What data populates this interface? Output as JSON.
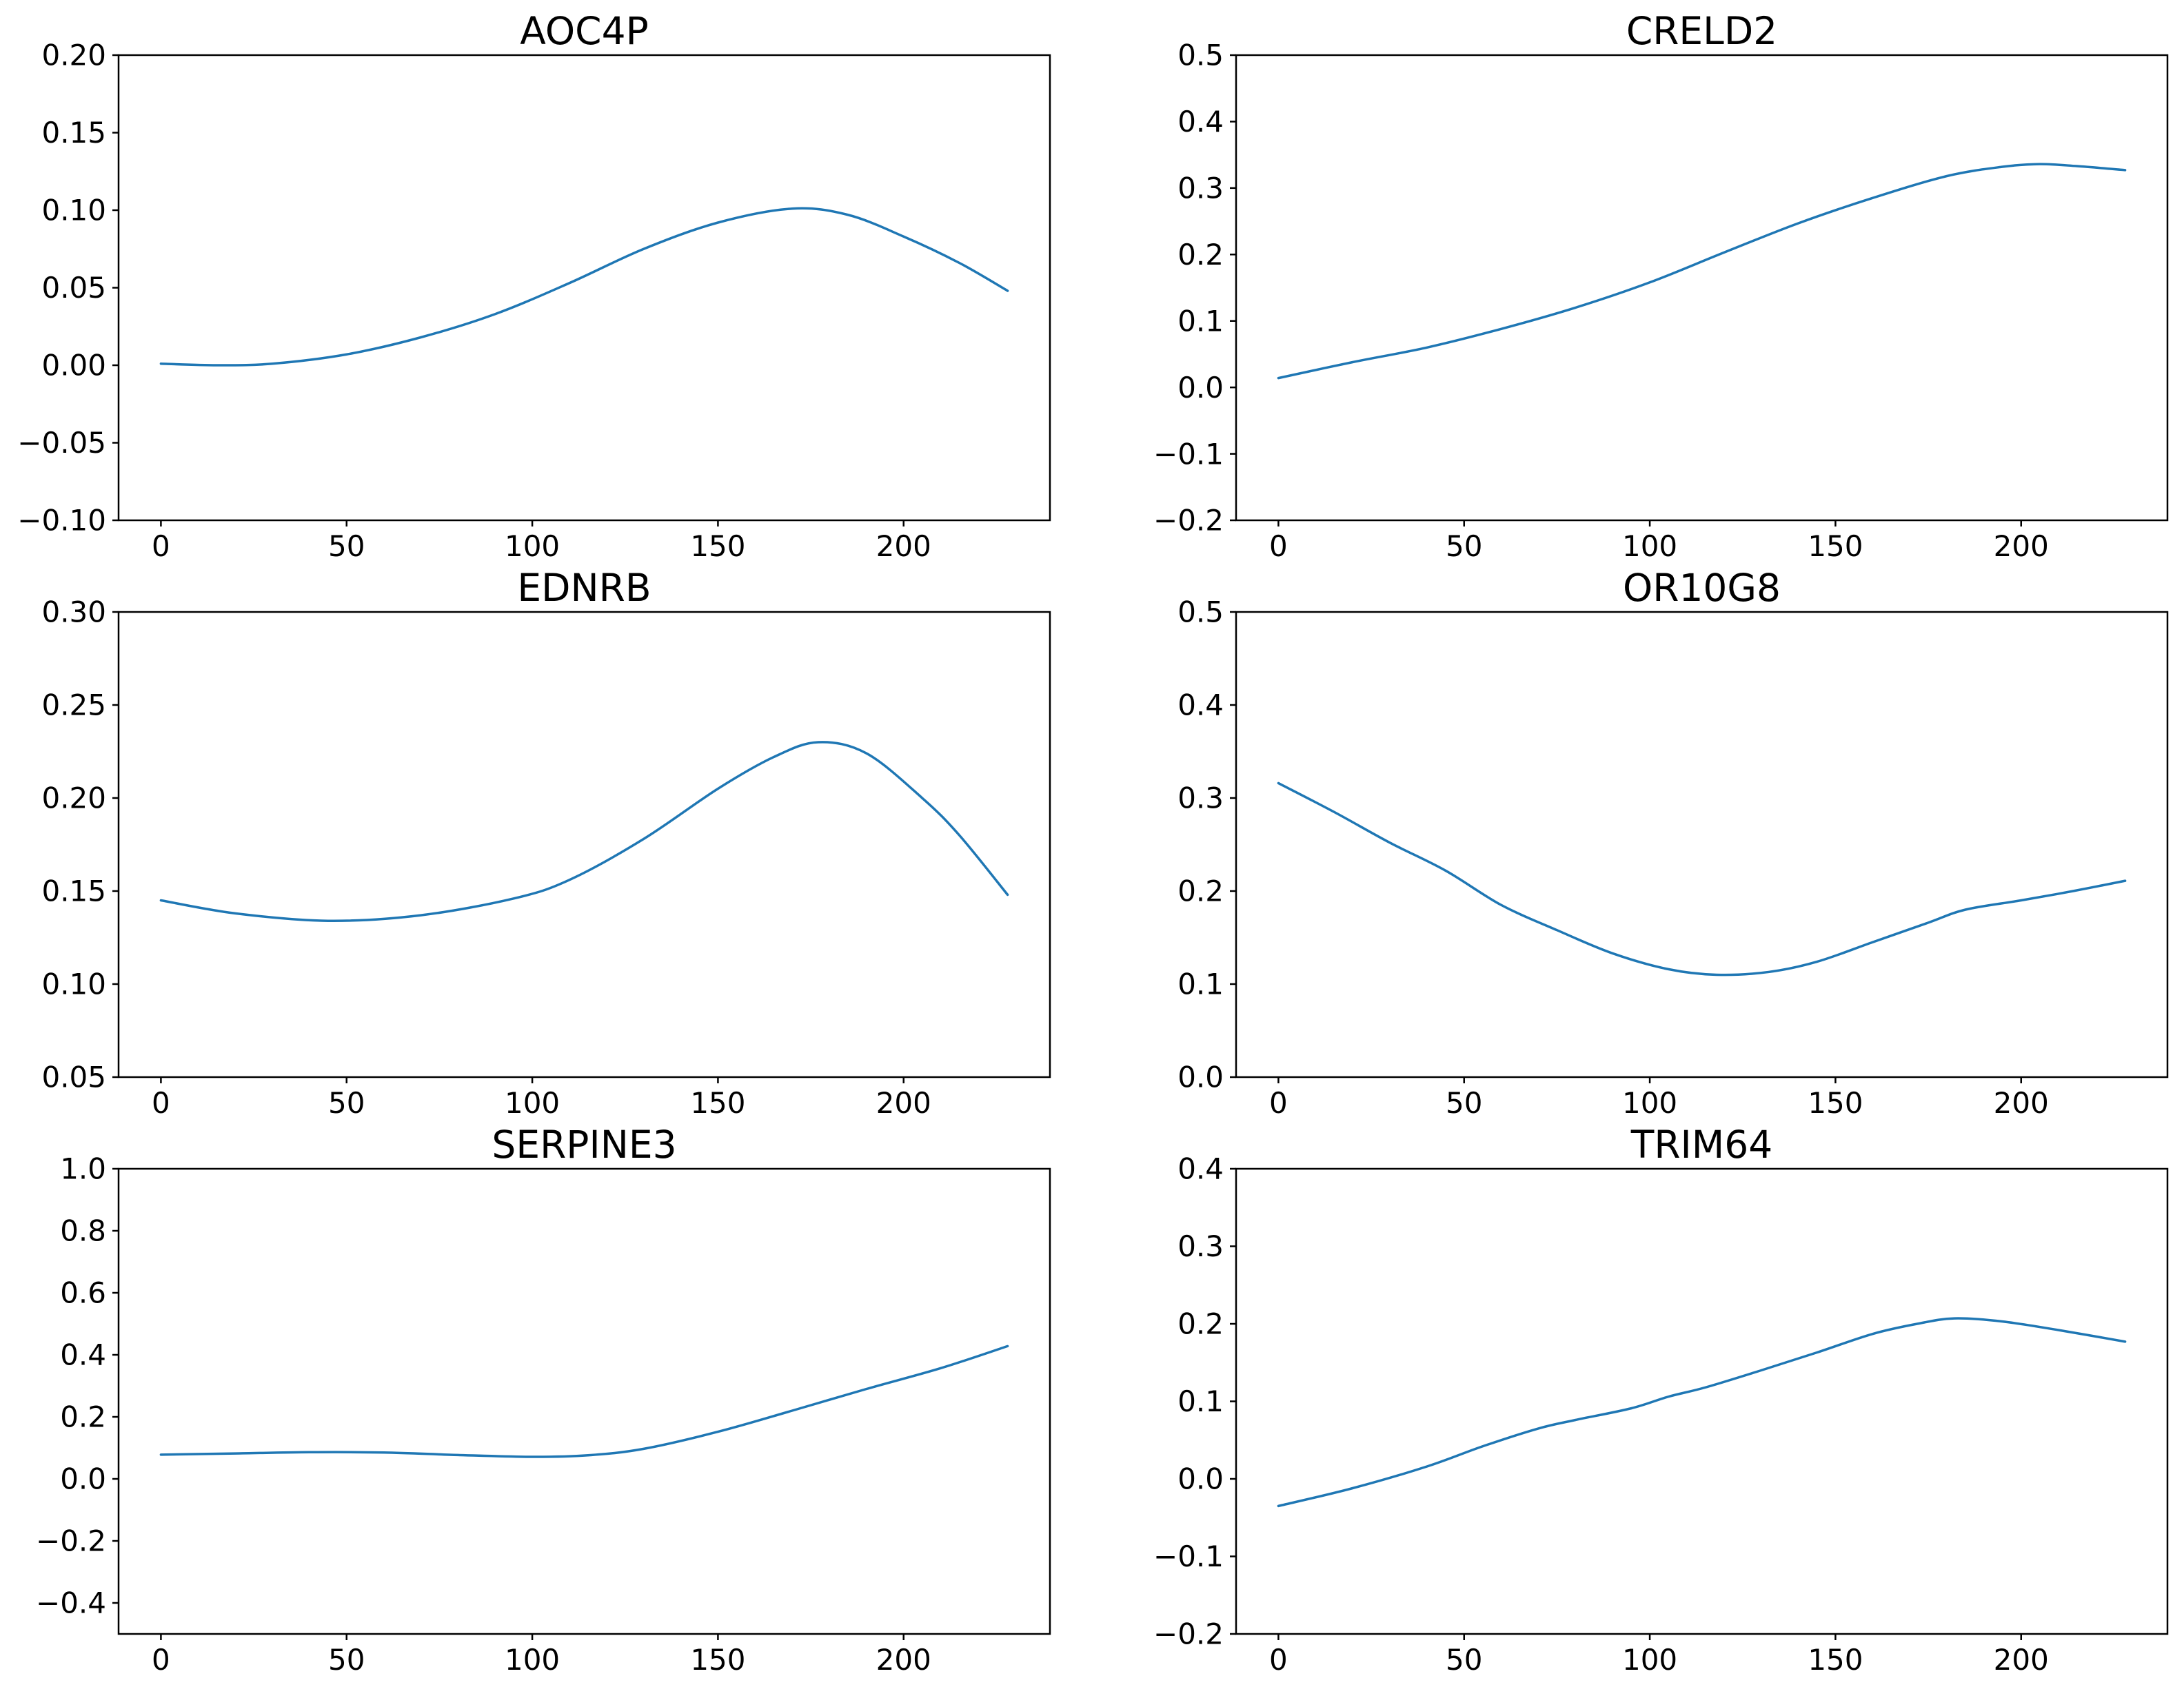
{
  "figure": {
    "background_color": "#ffffff",
    "line_color": "#1f77b4",
    "axis_color": "#000000",
    "rows": 3,
    "cols": 2
  },
  "chart_data": [
    {
      "type": "line",
      "title": "AOC4P",
      "xlim": [
        -11.4,
        239.4
      ],
      "ylim": [
        -0.1,
        0.2
      ],
      "grid": false,
      "legend": null,
      "x_ticks": {
        "values": [
          0,
          50,
          100,
          150,
          200
        ],
        "labels": [
          "0",
          "50",
          "100",
          "150",
          "200"
        ]
      },
      "y_ticks": {
        "values": [
          -0.1,
          -0.05,
          0.0,
          0.05,
          0.1,
          0.15,
          0.2
        ],
        "labels": [
          "−0.10",
          "−0.05",
          "0.00",
          "0.05",
          "0.10",
          "0.15",
          "0.20"
        ]
      },
      "series": [
        {
          "x": [
            0,
            15,
            30,
            50,
            70,
            90,
            110,
            130,
            150,
            170,
            185,
            200,
            215,
            228
          ],
          "y": [
            0.001,
            0.0,
            0.001,
            0.007,
            0.018,
            0.033,
            0.053,
            0.075,
            0.092,
            0.101,
            0.097,
            0.083,
            0.066,
            0.048
          ]
        }
      ]
    },
    {
      "type": "line",
      "title": "CRELD2",
      "xlim": [
        -11.4,
        239.4
      ],
      "ylim": [
        -0.2,
        0.5
      ],
      "grid": false,
      "legend": null,
      "x_ticks": {
        "values": [
          0,
          50,
          100,
          150,
          200
        ],
        "labels": [
          "0",
          "50",
          "100",
          "150",
          "200"
        ]
      },
      "y_ticks": {
        "values": [
          -0.2,
          -0.1,
          0.0,
          0.1,
          0.2,
          0.3,
          0.4,
          0.5
        ],
        "labels": [
          "−0.2",
          "−0.1",
          "0.0",
          "0.1",
          "0.2",
          "0.3",
          "0.4",
          "0.5"
        ]
      },
      "series": [
        {
          "x": [
            0,
            20,
            40,
            60,
            80,
            100,
            120,
            140,
            160,
            180,
            195,
            205,
            215,
            228
          ],
          "y": [
            0.014,
            0.038,
            0.06,
            0.088,
            0.12,
            0.158,
            0.203,
            0.247,
            0.285,
            0.318,
            0.332,
            0.336,
            0.333,
            0.327
          ]
        }
      ]
    },
    {
      "type": "line",
      "title": "EDNRB",
      "xlim": [
        -11.4,
        239.4
      ],
      "ylim": [
        0.05,
        0.3
      ],
      "grid": false,
      "legend": null,
      "x_ticks": {
        "values": [
          0,
          50,
          100,
          150,
          200
        ],
        "labels": [
          "0",
          "50",
          "100",
          "150",
          "200"
        ]
      },
      "y_ticks": {
        "values": [
          0.05,
          0.1,
          0.15,
          0.2,
          0.25,
          0.3
        ],
        "labels": [
          "0.05",
          "0.10",
          "0.15",
          "0.20",
          "0.25",
          "0.30"
        ]
      },
      "series": [
        {
          "x": [
            0,
            20,
            45,
            70,
            95,
            110,
            130,
            150,
            165,
            177,
            190,
            205,
            215,
            228
          ],
          "y": [
            0.145,
            0.138,
            0.134,
            0.137,
            0.146,
            0.156,
            0.178,
            0.205,
            0.222,
            0.23,
            0.224,
            0.2,
            0.18,
            0.148
          ]
        }
      ]
    },
    {
      "type": "line",
      "title": "OR10G8",
      "xlim": [
        -11.4,
        239.4
      ],
      "ylim": [
        0.0,
        0.5
      ],
      "grid": false,
      "legend": null,
      "x_ticks": {
        "values": [
          0,
          50,
          100,
          150,
          200
        ],
        "labels": [
          "0",
          "50",
          "100",
          "150",
          "200"
        ]
      },
      "y_ticks": {
        "values": [
          0.0,
          0.1,
          0.2,
          0.3,
          0.4,
          0.5
        ],
        "labels": [
          "0.0",
          "0.1",
          "0.2",
          "0.3",
          "0.4",
          "0.5"
        ]
      },
      "series": [
        {
          "x": [
            0,
            15,
            30,
            45,
            60,
            75,
            90,
            105,
            118,
            132,
            145,
            160,
            175,
            185,
            200,
            214,
            228
          ],
          "y": [
            0.316,
            0.285,
            0.252,
            0.222,
            0.185,
            0.158,
            0.133,
            0.116,
            0.11,
            0.113,
            0.124,
            0.145,
            0.166,
            0.18,
            0.19,
            0.2,
            0.211
          ]
        }
      ]
    },
    {
      "type": "line",
      "title": "SERPINE3",
      "xlim": [
        -11.4,
        239.4
      ],
      "ylim": [
        -0.5,
        1.0
      ],
      "grid": false,
      "legend": null,
      "x_ticks": {
        "values": [
          0,
          50,
          100,
          150,
          200
        ],
        "labels": [
          "0",
          "50",
          "100",
          "150",
          "200"
        ]
      },
      "y_ticks": {
        "values": [
          -0.4,
          -0.2,
          0.0,
          0.2,
          0.4,
          0.6,
          0.8,
          1.0
        ],
        "labels": [
          "−0.4",
          "−0.2",
          "0.0",
          "0.2",
          "0.4",
          "0.6",
          "0.8",
          "1.0"
        ]
      },
      "series": [
        {
          "x": [
            0,
            20,
            40,
            60,
            80,
            100,
            115,
            130,
            150,
            170,
            190,
            210,
            228
          ],
          "y": [
            0.078,
            0.082,
            0.086,
            0.085,
            0.077,
            0.071,
            0.076,
            0.097,
            0.152,
            0.22,
            0.29,
            0.357,
            0.428
          ]
        }
      ]
    },
    {
      "type": "line",
      "title": "TRIM64",
      "xlim": [
        -11.4,
        239.4
      ],
      "ylim": [
        -0.2,
        0.4
      ],
      "grid": false,
      "legend": null,
      "x_ticks": {
        "values": [
          0,
          50,
          100,
          150,
          200
        ],
        "labels": [
          "0",
          "50",
          "100",
          "150",
          "200"
        ]
      },
      "y_ticks": {
        "values": [
          -0.2,
          -0.1,
          0.0,
          0.1,
          0.2,
          0.3,
          0.4
        ],
        "labels": [
          "−0.2",
          "−0.1",
          "0.0",
          "0.1",
          "0.2",
          "0.3",
          "0.4"
        ]
      },
      "series": [
        {
          "x": [
            0,
            20,
            40,
            55,
            70,
            80,
            95,
            105,
            115,
            130,
            145,
            160,
            172,
            182,
            195,
            210,
            228
          ],
          "y": [
            -0.035,
            -0.012,
            0.016,
            0.042,
            0.065,
            0.076,
            0.091,
            0.106,
            0.118,
            0.14,
            0.163,
            0.187,
            0.2,
            0.207,
            0.203,
            0.192,
            0.177
          ]
        }
      ]
    }
  ]
}
